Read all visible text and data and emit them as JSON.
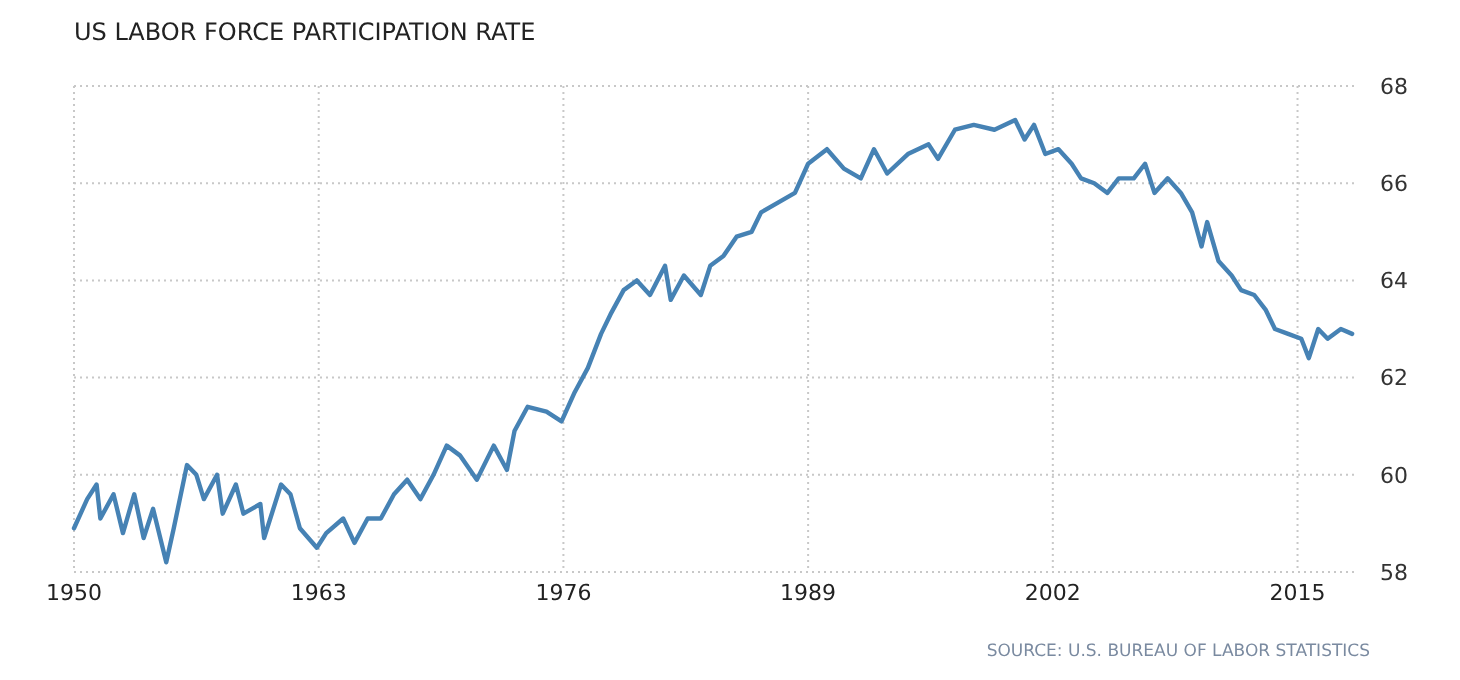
{
  "chart_data": {
    "type": "line",
    "title": "US LABOR FORCE PARTICIPATION RATE",
    "x": [
      1950.0,
      1950.7,
      1951.2,
      1951.4,
      1952.1,
      1952.6,
      1953.2,
      1953.7,
      1954.2,
      1954.9,
      1955.3,
      1956.0,
      1956.5,
      1956.9,
      1957.6,
      1957.9,
      1958.6,
      1959.0,
      1959.9,
      1960.1,
      1961.0,
      1961.5,
      1962.0,
      1962.9,
      1963.4,
      1964.3,
      1964.9,
      1965.6,
      1966.3,
      1967.0,
      1967.7,
      1968.4,
      1969.1,
      1969.8,
      1970.5,
      1971.4,
      1972.3,
      1973.0,
      1973.4,
      1974.1,
      1975.1,
      1975.9,
      1976.6,
      1977.3,
      1978.0,
      1978.5,
      1979.2,
      1979.9,
      1980.6,
      1981.4,
      1981.7,
      1982.4,
      1983.3,
      1983.8,
      1984.5,
      1985.2,
      1986.0,
      1986.5,
      1987.4,
      1988.3,
      1989.0,
      1990.0,
      1990.9,
      1991.8,
      1992.5,
      1993.2,
      1994.3,
      1995.4,
      1995.9,
      1996.8,
      1997.8,
      1998.9,
      2000.0,
      2000.5,
      2001.0,
      2001.6,
      2002.3,
      2003.0,
      2003.5,
      2004.2,
      2004.9,
      2005.5,
      2006.3,
      2006.9,
      2007.4,
      2008.1,
      2008.8,
      2009.4,
      2009.9,
      2010.2,
      2010.8,
      2011.5,
      2012.0,
      2012.7,
      2013.3,
      2013.8,
      2014.5,
      2015.2,
      2015.6,
      2016.1,
      2016.6,
      2017.3,
      2017.9
    ],
    "series": [
      {
        "color": "#4682b4",
        "values": [
          58.9,
          59.5,
          59.8,
          59.1,
          59.6,
          58.8,
          59.6,
          58.7,
          59.3,
          58.2,
          58.9,
          60.2,
          60.0,
          59.5,
          60.0,
          59.2,
          59.8,
          59.2,
          59.4,
          58.7,
          59.8,
          59.6,
          58.9,
          58.5,
          58.8,
          59.1,
          58.6,
          59.1,
          59.1,
          59.6,
          59.9,
          59.5,
          60.0,
          60.6,
          60.4,
          59.9,
          60.6,
          60.1,
          60.9,
          61.4,
          61.3,
          61.1,
          61.7,
          62.2,
          62.9,
          63.3,
          63.8,
          64.0,
          63.7,
          64.3,
          63.6,
          64.1,
          63.7,
          64.3,
          64.5,
          64.9,
          65.0,
          65.4,
          65.6,
          65.8,
          66.4,
          66.7,
          66.3,
          66.1,
          66.7,
          66.2,
          66.6,
          66.8,
          66.5,
          67.1,
          67.2,
          67.1,
          67.3,
          66.9,
          67.2,
          66.6,
          66.7,
          66.4,
          66.1,
          66.0,
          65.8,
          66.1,
          66.1,
          66.4,
          65.8,
          66.1,
          65.8,
          65.4,
          64.7,
          65.2,
          64.4,
          64.1,
          63.8,
          63.7,
          63.4,
          63.0,
          62.9,
          62.8,
          62.4,
          63.0,
          62.8,
          63.0,
          62.9
        ]
      }
    ],
    "xlim": [
      1950,
      2018
    ],
    "xticks": [
      1950,
      1963,
      1976,
      1989,
      2002,
      2015
    ],
    "ylim": [
      58,
      68
    ],
    "yticks": [
      58,
      60,
      62,
      64,
      66,
      68
    ],
    "grid": true,
    "line_style": "solid",
    "marker": "none",
    "annotations": [
      "SOURCE: U.S. BUREAU OF LABOR STATISTICS"
    ]
  }
}
